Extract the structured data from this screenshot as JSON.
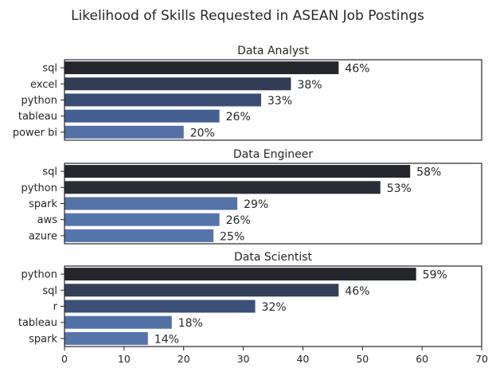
{
  "title": "Likelihood of Skills Requested in ASEAN Job Postings",
  "chart_data": [
    {
      "type": "bar",
      "orientation": "horizontal",
      "title": "Data Analyst",
      "categories": [
        "sql",
        "excel",
        "python",
        "tableau",
        "power bi"
      ],
      "values": [
        46,
        38,
        33,
        26,
        20
      ],
      "data_labels": [
        "46%",
        "38%",
        "33%",
        "26%",
        "20%"
      ],
      "colors": [
        "#24262b",
        "#323c54",
        "#3b4d72",
        "#465f92",
        "#5470a6"
      ],
      "xlim": [
        0,
        70
      ],
      "grid": false
    },
    {
      "type": "bar",
      "orientation": "horizontal",
      "title": "Data Engineer",
      "categories": [
        "sql",
        "python",
        "spark",
        "aws",
        "azure"
      ],
      "values": [
        58,
        53,
        29,
        26,
        25
      ],
      "data_labels": [
        "58%",
        "53%",
        "29%",
        "26%",
        "25%"
      ],
      "colors": [
        "#24262b",
        "#292d36",
        "#5472a6",
        "#5574a9",
        "#5675ab"
      ],
      "xlim": [
        0,
        70
      ],
      "grid": false
    },
    {
      "type": "bar",
      "orientation": "horizontal",
      "title": "Data Scientist",
      "categories": [
        "python",
        "sql",
        "r",
        "tableau",
        "spark"
      ],
      "values": [
        59,
        46,
        32,
        18,
        14
      ],
      "data_labels": [
        "59%",
        "46%",
        "32%",
        "18%",
        "14%"
      ],
      "colors": [
        "#24262b",
        "#343f58",
        "#3d5078",
        "#5170a6",
        "#5675ab"
      ],
      "xlim": [
        0,
        70
      ],
      "xticks": [
        0,
        10,
        20,
        30,
        40,
        50,
        60,
        70
      ],
      "grid": false
    }
  ]
}
